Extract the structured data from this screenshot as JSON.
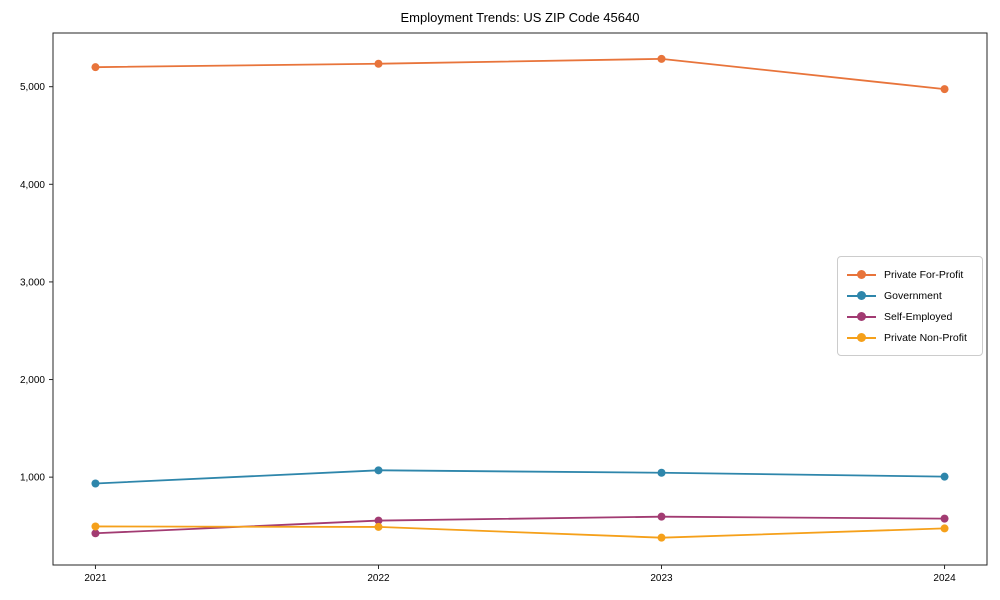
{
  "chart_data": {
    "type": "line",
    "title": "Employment Trends: US ZIP Code 45640",
    "x": [
      2021,
      2022,
      2023,
      2024
    ],
    "x_tick_labels": [
      "2021",
      "2022",
      "2023",
      "2024"
    ],
    "y_ticks": [
      1000,
      2000,
      3000,
      4000,
      5000
    ],
    "y_tick_labels": [
      "1,000",
      "2,000",
      "3,000",
      "4,000",
      "5,000"
    ],
    "ylim": [
      100,
      5550
    ],
    "grid": false,
    "legend_position": "center-right",
    "marker": "circle",
    "background_color": "#ffffff",
    "spine_color": "#262626",
    "series": [
      {
        "name": "Private For-Profit",
        "color": "#E8743B",
        "values": [
          5200,
          5235,
          5285,
          4975
        ]
      },
      {
        "name": "Government",
        "color": "#2E86AB",
        "values": [
          935,
          1070,
          1045,
          1005
        ]
      },
      {
        "name": "Self-Employed",
        "color": "#A23B72",
        "values": [
          425,
          555,
          595,
          575
        ]
      },
      {
        "name": "Private Non-Profit",
        "color": "#F5A01A",
        "values": [
          495,
          490,
          380,
          475
        ]
      }
    ]
  }
}
